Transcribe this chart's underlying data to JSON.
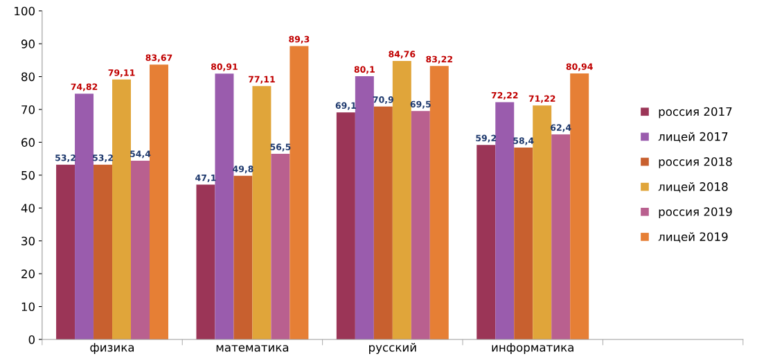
{
  "chart_data": {
    "type": "bar",
    "categories": [
      "физика",
      "математика",
      "русский",
      "информатика",
      null
    ],
    "series": [
      {
        "name": "россия 2017",
        "color": "#9b3557",
        "values": [
          53.2,
          47.1,
          69.1,
          59.2,
          null
        ],
        "value_labels": [
          "53,2",
          "47,1",
          "69,1",
          "59,2",
          null
        ]
      },
      {
        "name": "лицей 2017",
        "color": "#9a5cad",
        "values": [
          74.82,
          80.91,
          80.1,
          72.22,
          null
        ],
        "value_labels": [
          "74,82",
          "80,91",
          "80,1",
          "72,22",
          null
        ]
      },
      {
        "name": "россия 2018",
        "color": "#c8602f",
        "values": [
          53.2,
          49.8,
          70.9,
          58.4,
          null
        ],
        "value_labels": [
          "53,2",
          "49,8",
          "70,9",
          "58,4",
          null
        ]
      },
      {
        "name": "лицей 2018",
        "color": "#e0a53a",
        "values": [
          79.11,
          77.11,
          84.76,
          71.22,
          null
        ],
        "value_labels": [
          "79,11",
          "77,11",
          "84,76",
          "71,22",
          null
        ]
      },
      {
        "name": "россия 2019",
        "color": "#b9608f",
        "values": [
          54.4,
          56.5,
          69.5,
          62.4,
          null
        ],
        "value_labels": [
          "54,4",
          "56,5",
          "69,5",
          "62,4",
          null
        ]
      },
      {
        "name": "лицей 2019",
        "color": "#e67f35",
        "values": [
          83.67,
          89.3,
          83.22,
          80.94,
          null
        ],
        "value_labels": [
          "83,67",
          "89,3",
          "83,22",
          "80,94",
          null
        ]
      }
    ],
    "ylim": [
      0,
      100
    ],
    "yticks": [
      0,
      10,
      20,
      30,
      40,
      50,
      60,
      70,
      80,
      90,
      100
    ],
    "grid": false,
    "legend": "right"
  }
}
